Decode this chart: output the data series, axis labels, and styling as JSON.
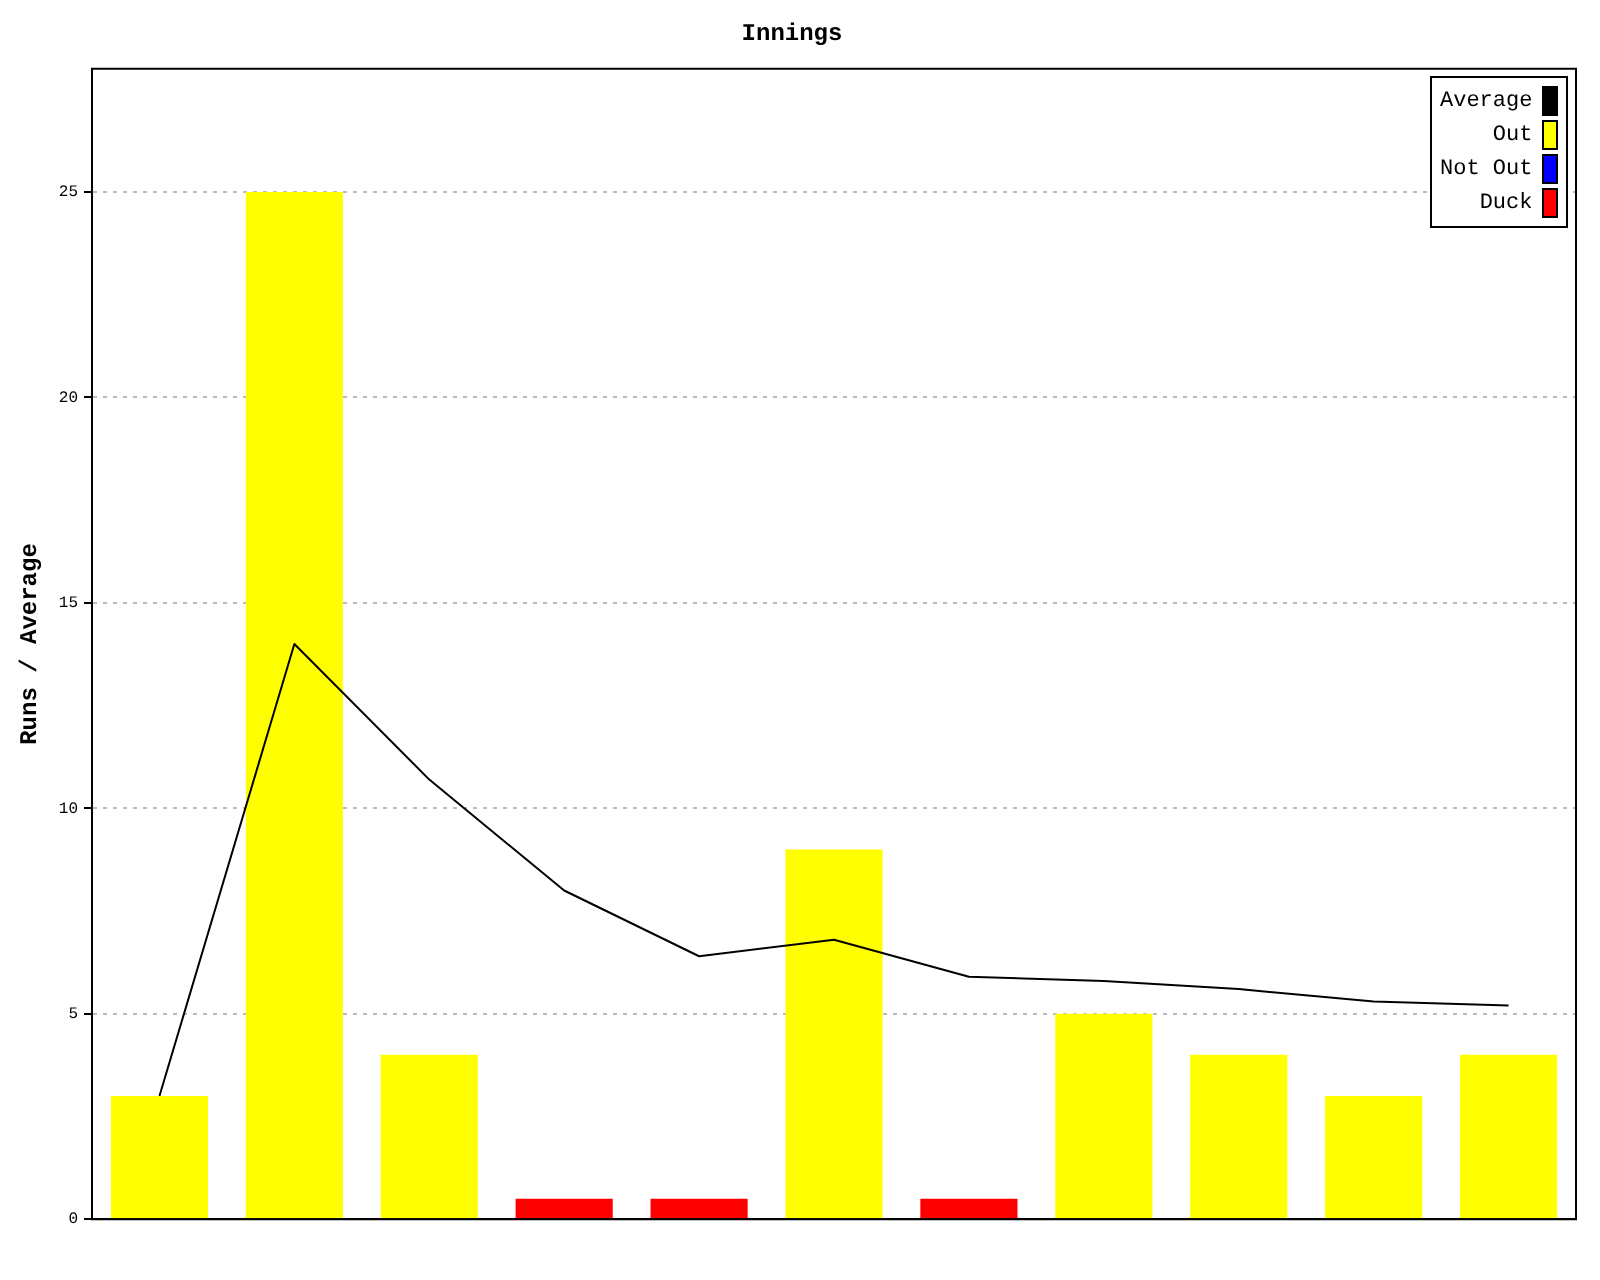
{
  "chart_data": {
    "type": "bar",
    "title": "Innings",
    "ylabel": "Runs / Average",
    "categories": [
      null,
      null,
      null,
      null,
      null,
      null,
      null,
      null,
      null,
      null,
      null
    ],
    "series": [
      {
        "name": "Average",
        "type": "line",
        "color": "#000000",
        "values": [
          3,
          14,
          10.7,
          8,
          6.4,
          6.8,
          5.9,
          5.8,
          5.6,
          5.3,
          5.2
        ]
      },
      {
        "name": "Out",
        "color": "#ffff00",
        "values": [
          3,
          25,
          4,
          null,
          null,
          9,
          null,
          5,
          4,
          3,
          4
        ]
      },
      {
        "name": "Not Out",
        "color": "#0000ff",
        "values": [
          null,
          null,
          null,
          null,
          null,
          null,
          null,
          null,
          null,
          null,
          null
        ]
      },
      {
        "name": "Duck",
        "color": "#ff0000",
        "values": [
          null,
          null,
          null,
          0.5,
          0.5,
          null,
          0.5,
          null,
          null,
          null,
          null
        ]
      }
    ],
    "ylim": [
      0,
      28
    ],
    "yticks": [
      0,
      5,
      10,
      15,
      20,
      25
    ],
    "grid": "y",
    "legend": "top right",
    "marker": "none",
    "line_style": "solid"
  }
}
